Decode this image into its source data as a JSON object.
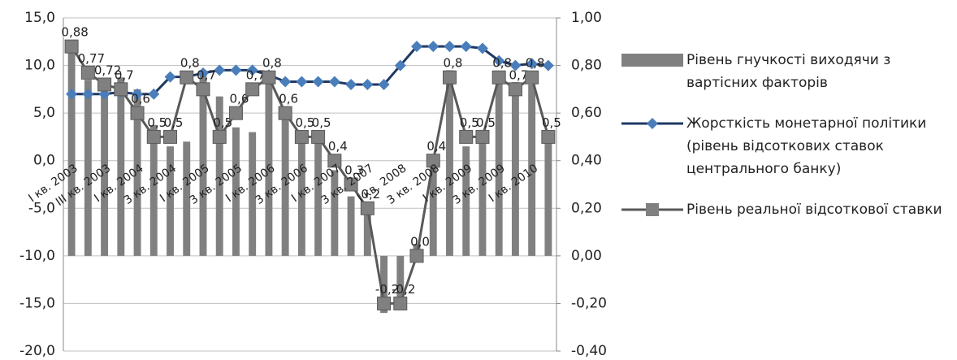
{
  "chart_data": {
    "type": "combo",
    "categories": [
      "I кв. 2003",
      null,
      "III кв. 2003",
      null,
      "I кв. 2004",
      null,
      "3 кв. 2004",
      null,
      "I кв. 2005",
      null,
      "3 кв. 2005",
      null,
      "I кв. 2006",
      null,
      "3 кв. 2006",
      null,
      "I кв. 2007",
      null,
      "3 кв. 2007",
      null,
      "I кв. 2008",
      null,
      "3 кв. 2008",
      null,
      "I кв. 2009",
      null,
      "3 кв. 2009",
      null,
      "I кв. 2010",
      null
    ],
    "series": [
      {
        "name": "Рівень гнучкості виходячи з вартісних факторів",
        "type": "bar",
        "axis": "y2",
        "color": "#808080",
        "values": [
          0.86,
          0.74,
          0.68,
          0.75,
          0.7,
          0.55,
          0.46,
          0.48,
          0.78,
          0.67,
          0.54,
          0.52,
          0.74,
          0.62,
          0.48,
          0.5,
          0.36,
          0.25,
          0.21,
          -0.24,
          -0.22,
          0.05,
          0.4,
          0.78,
          0.46,
          0.5,
          0.75,
          0.73,
          0.72,
          0.49
        ]
      },
      {
        "name": "Жорсткість монетарної політики (рівень відсоткових ставок центрального банку)",
        "type": "line",
        "marker": "diamond",
        "color": "#1f3864",
        "marker_color": "#4a7ebb",
        "values": [
          7,
          7,
          7,
          7.2,
          7,
          7,
          8.8,
          8.8,
          9.2,
          9.5,
          9.5,
          9.5,
          9,
          8.3,
          8.3,
          8.3,
          8.3,
          8,
          8,
          8,
          10,
          12,
          12,
          12,
          12,
          11.8,
          10.5,
          10,
          10.2,
          10
        ]
      },
      {
        "name": "Рівень реальної відсоткової ставки",
        "type": "line",
        "marker": "square",
        "axis": "y2",
        "color": "#595959",
        "marker_color": "#808080",
        "values": [
          0.88,
          0.77,
          0.72,
          0.7,
          0.6,
          0.5,
          0.5,
          0.75,
          0.7,
          0.5,
          0.6,
          0.7,
          0.75,
          0.6,
          0.5,
          0.5,
          0.4,
          0.3,
          0.2,
          -0.2,
          -0.2,
          0.0,
          0.4,
          0.75,
          0.5,
          0.5,
          0.75,
          0.7,
          0.75,
          0.5
        ],
        "value_labels": [
          "0,88",
          "0,77",
          "0,72",
          "0,7",
          "0,6",
          "0,5",
          "0,5",
          "0,8",
          "0,7",
          "0,5",
          "0,6",
          "0,7",
          "0,8",
          "0,6",
          "0,5",
          "0,5",
          "0,4",
          "0,3",
          "0,2",
          "-0,2",
          "-0,2",
          "0,0",
          "0,4",
          "0,8",
          "0,5",
          "0,5",
          "0,8",
          "0,7",
          "0,8",
          "0,5"
        ]
      }
    ],
    "ylim": [
      -20,
      15
    ],
    "yticks": [
      {
        "value": -20,
        "label": "-20,0"
      },
      {
        "value": -15,
        "label": "-15,0"
      },
      {
        "value": -10,
        "label": "-10,0"
      },
      {
        "value": -5,
        "label": "-5,0"
      },
      {
        "value": 0,
        "label": "0,0"
      },
      {
        "value": 5,
        "label": "5,0"
      },
      {
        "value": 10,
        "label": "10,0"
      },
      {
        "value": 15,
        "label": "15,0"
      }
    ],
    "y2lim": [
      -0.4,
      1
    ],
    "y2ticks": [
      {
        "value": -0.4,
        "label": "-0,40"
      },
      {
        "value": -0.2,
        "label": "-0,20"
      },
      {
        "value": 0,
        "label": "0,00"
      },
      {
        "value": 0.2,
        "label": "0,20"
      },
      {
        "value": 0.4,
        "label": "0,40"
      },
      {
        "value": 0.6,
        "label": "0,60"
      },
      {
        "value": 0.8,
        "label": "0,80"
      },
      {
        "value": 1,
        "label": "1,00"
      }
    ],
    "grid": true,
    "legend": "right"
  }
}
